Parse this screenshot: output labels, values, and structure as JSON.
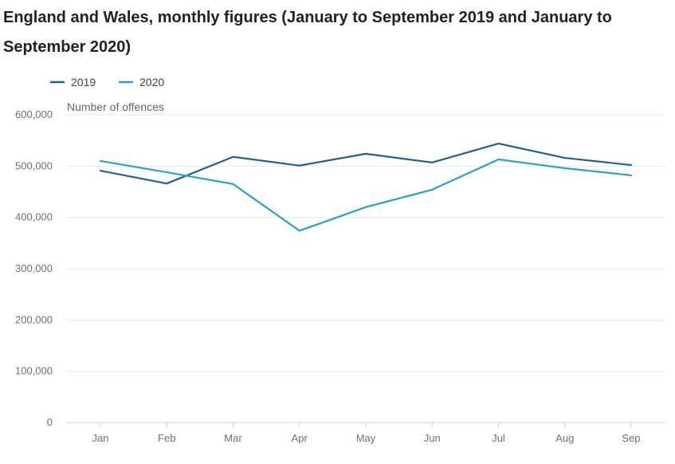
{
  "chart_data": {
    "type": "line",
    "title": "England and Wales, monthly figures (January to September 2019 and January to September 2020)",
    "ylabel": "Number of offences",
    "xlabel": "",
    "categories": [
      "Jan",
      "Feb",
      "Mar",
      "Apr",
      "May",
      "Jun",
      "Jul",
      "Aug",
      "Sep"
    ],
    "ylim": [
      0,
      600000
    ],
    "yticks": [
      0,
      100000,
      200000,
      300000,
      400000,
      500000,
      600000
    ],
    "ytick_labels": [
      "0",
      "100,000",
      "200,000",
      "300,000",
      "400,000",
      "500,000",
      "600,000"
    ],
    "grid": true,
    "legend_position": "top-left",
    "series": [
      {
        "name": "2019",
        "color": "#206095",
        "values": [
          491000,
          466000,
          518000,
          501000,
          524000,
          507000,
          544000,
          516000,
          502000
        ]
      },
      {
        "name": "2020",
        "color": "#27a0cc",
        "values": [
          510000,
          488000,
          465000,
          374000,
          420000,
          454000,
          513000,
          496000,
          482000
        ]
      }
    ]
  }
}
